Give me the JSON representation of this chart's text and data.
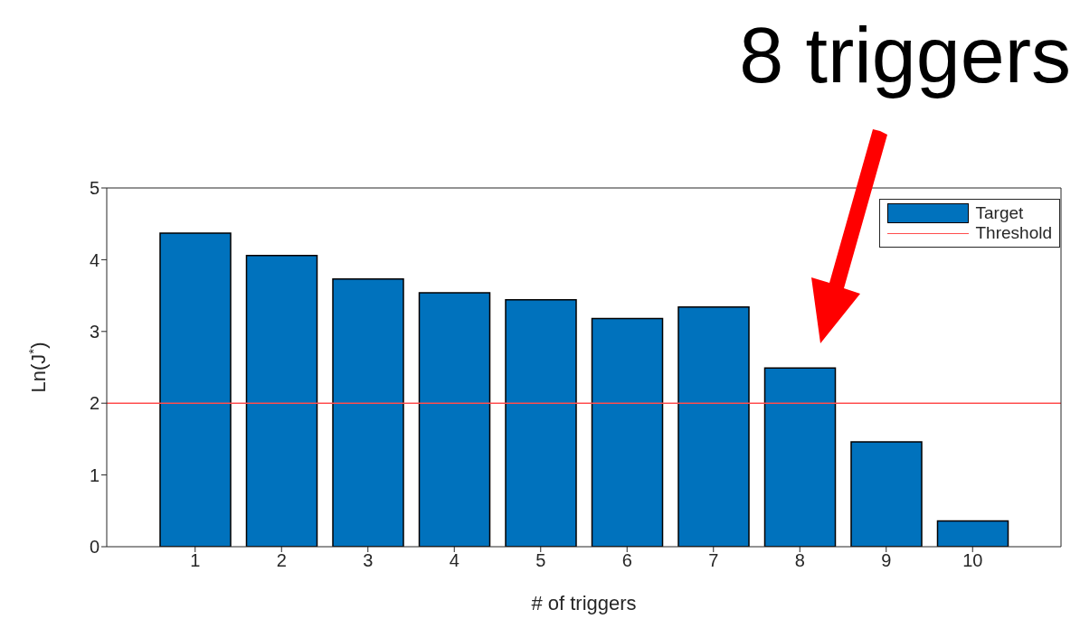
{
  "chart_data": {
    "type": "bar",
    "xlabel": "# of triggers",
    "ylabel": "Ln(J$^{*}$)",
    "categories": [
      "1",
      "2",
      "3",
      "4",
      "5",
      "6",
      "7",
      "8",
      "9",
      "10"
    ],
    "series": [
      {
        "name": "Target",
        "color": "#0072bd",
        "values": [
          4.37,
          4.06,
          3.73,
          3.54,
          3.44,
          3.18,
          3.34,
          2.49,
          1.46,
          0.36
        ]
      }
    ],
    "ylim": [
      0,
      5
    ],
    "yticks": [
      0,
      1,
      2,
      3,
      4,
      5
    ],
    "ref_lines": [
      {
        "axis": "y",
        "value": 2,
        "label": "Threshold",
        "color": "#ff4d4d"
      }
    ],
    "annotations": [
      "8 triggers"
    ],
    "legend": "top right"
  }
}
